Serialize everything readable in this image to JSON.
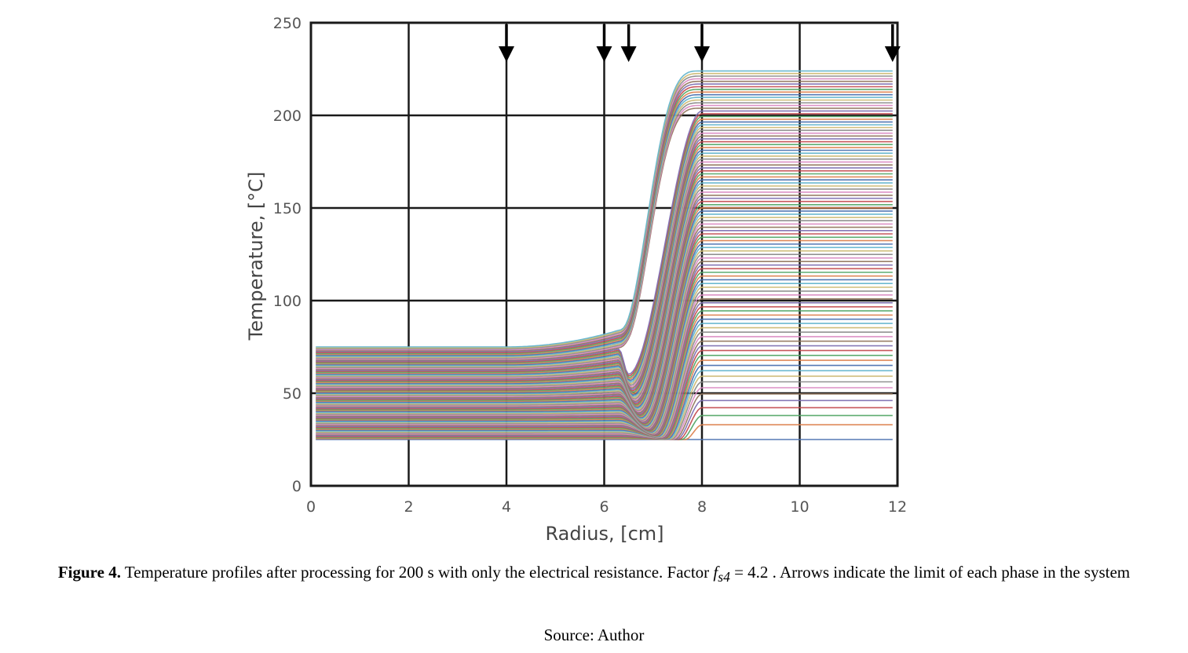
{
  "chart_data": {
    "type": "line",
    "xlabel": "Radius, [cm]",
    "ylabel": "Temperature, [°C]",
    "xlim": [
      0,
      12
    ],
    "ylim": [
      0,
      250
    ],
    "xticks": [
      "0",
      "2",
      "4",
      "6",
      "8",
      "10",
      "12"
    ],
    "yticks": [
      "0",
      "50",
      "100",
      "150",
      "200",
      "250"
    ],
    "grid": true,
    "legend": "none",
    "series_count": 100,
    "profile_description": "Each time-step profile: flat from r=0.1 to r=4, rising toward r≈6.3, steep rise from r≈6.3 to r=8, flat from r=8 to r=11.9",
    "envelope_upper": {
      "x": [
        0.1,
        4.0,
        6.0,
        6.3,
        6.6,
        8.0,
        11.9
      ],
      "y": [
        75,
        75,
        82,
        83,
        100,
        224,
        224
      ]
    },
    "envelope_lower": {
      "x": [
        0.1,
        11.9
      ],
      "y": [
        25,
        25
      ]
    },
    "plateau_left_range": [
      25,
      75
    ],
    "plateau_right_range": [
      25,
      224
    ],
    "phase_limit_arrows_x": [
      4,
      6,
      6.5,
      8,
      11.9
    ]
  },
  "caption": {
    "label": "Figure 4.",
    "text_before": "Temperature profiles after processing for 200 s with only the electrical resistance. Factor",
    "factor_symbol": "f",
    "factor_subscript": "s4",
    "factor_value": "= 4.2",
    "text_after": ". Arrows indicate the limit of each phase in the system"
  },
  "source": "Source: Author"
}
